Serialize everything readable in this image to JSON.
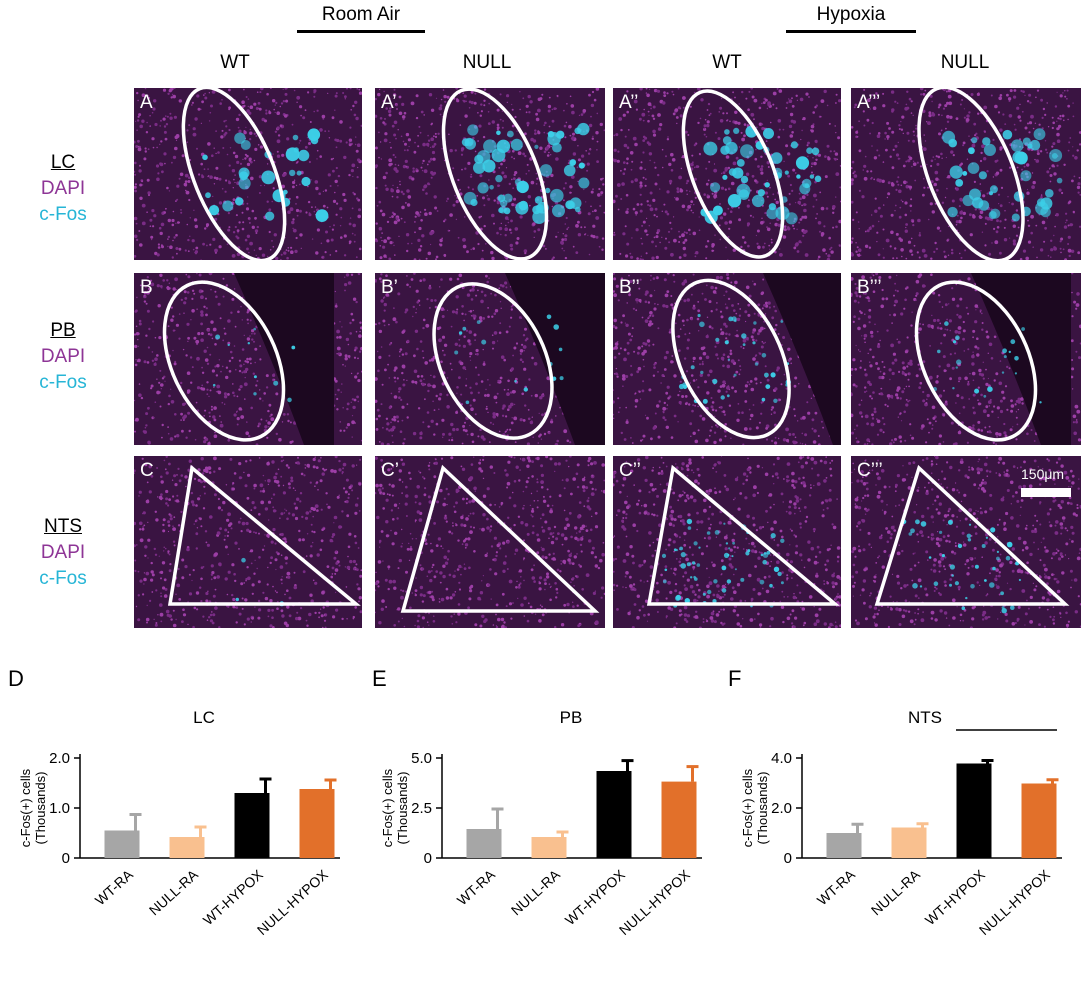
{
  "conditions": [
    {
      "label": "Room Air"
    },
    {
      "label": "Hypoxia"
    }
  ],
  "columns": [
    "WT",
    "NULL",
    "WT",
    "NULL"
  ],
  "rows": [
    {
      "region": "LC",
      "stain1": "DAPI",
      "stain2": "c-Fos"
    },
    {
      "region": "PB",
      "stain1": "DAPI",
      "stain2": "c-Fos"
    },
    {
      "region": "NTS",
      "stain1": "DAPI",
      "stain2": "c-Fos"
    }
  ],
  "panel_letters": [
    [
      "A",
      "A’",
      "A’’",
      "A’’’"
    ],
    [
      "B",
      "B’",
      "B’’",
      "B’’’"
    ],
    [
      "C",
      "C’",
      "C’’",
      "C’’’"
    ]
  ],
  "scale_bar_label": "150μm",
  "colors": {
    "dapi": "#8e3596",
    "cfos": "#26b5d6",
    "wt_ra": "#a6a6a6",
    "null_ra": "#f9c08f",
    "wt_hypox": "#000000",
    "null_hypox": "#e2702a"
  },
  "chart_letters": [
    "D",
    "E",
    "F"
  ],
  "chart_data": [
    {
      "type": "bar",
      "title": "LC",
      "ylabel_line1": "c-Fos(+) cells",
      "ylabel_line2": "(Thousands)",
      "categories": [
        "WT-RA",
        "NULL-RA",
        "WT-HYPOX",
        "NULL-HYPOX"
      ],
      "values": [
        0.55,
        0.42,
        1.3,
        1.38
      ],
      "errors": [
        0.32,
        0.2,
        0.28,
        0.18
      ],
      "ylim": [
        0,
        2.0
      ],
      "yticks": [
        "0",
        "1.0",
        "2.0"
      ],
      "ytick_values": [
        0,
        1.0,
        2.0
      ],
      "significance": ""
    },
    {
      "type": "bar",
      "title": "PB",
      "ylabel_line1": "c-Fos(+) cells",
      "ylabel_line2": "(Thousands)",
      "categories": [
        "WT-RA",
        "NULL-RA",
        "WT-HYPOX",
        "NULL-HYPOX"
      ],
      "values": [
        1.45,
        1.05,
        4.35,
        3.82
      ],
      "errors": [
        1.0,
        0.25,
        0.52,
        0.75
      ],
      "ylim": [
        0,
        5.0
      ],
      "yticks": [
        "0",
        "2.5",
        "5.0"
      ],
      "ytick_values": [
        0,
        2.5,
        5.0
      ],
      "significance": ""
    },
    {
      "type": "bar",
      "title": "NTS",
      "ylabel_line1": "c-Fos(+) cells",
      "ylabel_line2": "(Thousands)",
      "categories": [
        "WT-RA",
        "NULL-RA",
        "WT-HYPOX",
        "NULL-HYPOX"
      ],
      "values": [
        1.0,
        1.22,
        3.78,
        2.98
      ],
      "errors": [
        0.35,
        0.15,
        0.12,
        0.15
      ],
      "ylim": [
        0,
        4.0
      ],
      "yticks": [
        "0",
        "2.0",
        "4.0"
      ],
      "ytick_values": [
        0,
        2.0,
        4.0
      ],
      "significance": "*"
    }
  ]
}
